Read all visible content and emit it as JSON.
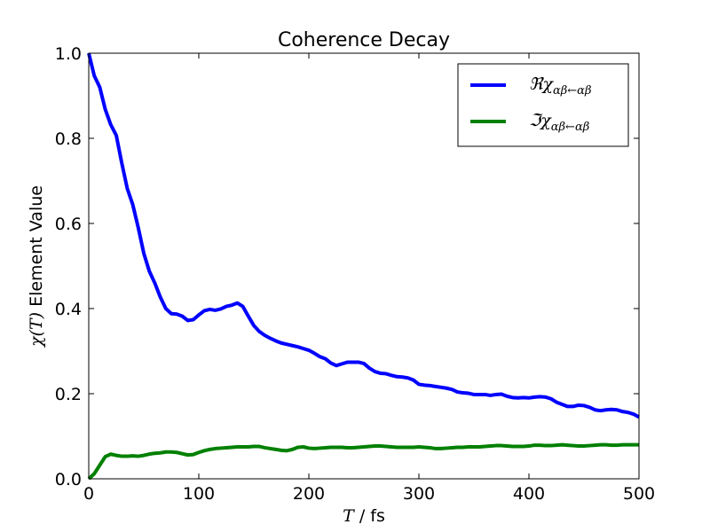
{
  "chart_data": {
    "type": "line",
    "title": "Coherence Decay",
    "xlabel": {
      "symbol": "T",
      "unit": " / fs"
    },
    "ylabel": {
      "symbol": "χ(T)",
      "text": " Element Value"
    },
    "xlim": [
      0,
      500
    ],
    "ylim": [
      0.0,
      1.0
    ],
    "xticks": [
      0,
      100,
      200,
      300,
      400,
      500
    ],
    "xtick_labels": [
      "0",
      "100",
      "200",
      "300",
      "400",
      "500"
    ],
    "yticks": [
      0.0,
      0.2,
      0.4,
      0.6,
      0.8,
      1.0
    ],
    "ytick_labels": [
      "0.0",
      "0.2",
      "0.4",
      "0.6",
      "0.8",
      "1.0"
    ],
    "grid": false,
    "legend_position": "top-right",
    "x": [
      0,
      5,
      10,
      15,
      20,
      25,
      30,
      35,
      40,
      45,
      50,
      55,
      60,
      65,
      70,
      75,
      80,
      85,
      90,
      95,
      100,
      105,
      110,
      115,
      120,
      125,
      130,
      135,
      140,
      145,
      150,
      155,
      160,
      165,
      170,
      175,
      180,
      185,
      190,
      195,
      200,
      205,
      210,
      215,
      220,
      225,
      230,
      235,
      240,
      245,
      250,
      255,
      260,
      265,
      270,
      275,
      280,
      285,
      290,
      295,
      300,
      305,
      310,
      315,
      320,
      325,
      330,
      335,
      340,
      345,
      350,
      355,
      360,
      365,
      370,
      375,
      380,
      385,
      390,
      395,
      400,
      405,
      410,
      415,
      420,
      425,
      430,
      435,
      440,
      445,
      450,
      455,
      460,
      465,
      470,
      475,
      480,
      485,
      490,
      495,
      500
    ],
    "series": [
      {
        "name": "ℜχ",
        "name_sub": "αβ←αβ",
        "color": "#0000ff",
        "values": [
          1.0,
          0.947,
          0.92,
          0.868,
          0.832,
          0.807,
          0.742,
          0.682,
          0.644,
          0.59,
          0.53,
          0.488,
          0.46,
          0.427,
          0.4,
          0.388,
          0.387,
          0.382,
          0.372,
          0.374,
          0.385,
          0.395,
          0.398,
          0.396,
          0.399,
          0.405,
          0.408,
          0.413,
          0.405,
          0.382,
          0.36,
          0.346,
          0.337,
          0.33,
          0.324,
          0.319,
          0.316,
          0.313,
          0.31,
          0.306,
          0.302,
          0.295,
          0.287,
          0.282,
          0.272,
          0.266,
          0.27,
          0.274,
          0.274,
          0.274,
          0.271,
          0.26,
          0.252,
          0.248,
          0.247,
          0.243,
          0.24,
          0.239,
          0.237,
          0.232,
          0.222,
          0.22,
          0.219,
          0.217,
          0.215,
          0.213,
          0.21,
          0.204,
          0.202,
          0.201,
          0.198,
          0.198,
          0.198,
          0.196,
          0.198,
          0.199,
          0.194,
          0.191,
          0.19,
          0.191,
          0.19,
          0.192,
          0.193,
          0.192,
          0.188,
          0.18,
          0.175,
          0.17,
          0.17,
          0.173,
          0.172,
          0.168,
          0.162,
          0.16,
          0.162,
          0.163,
          0.162,
          0.158,
          0.156,
          0.152,
          0.145
        ]
      },
      {
        "name": "ℑχ",
        "name_sub": "αβ←αβ",
        "color": "#008000",
        "values": [
          0.0,
          0.012,
          0.032,
          0.052,
          0.058,
          0.055,
          0.053,
          0.053,
          0.054,
          0.053,
          0.055,
          0.058,
          0.06,
          0.061,
          0.063,
          0.063,
          0.062,
          0.059,
          0.056,
          0.057,
          0.062,
          0.066,
          0.069,
          0.071,
          0.072,
          0.073,
          0.074,
          0.075,
          0.075,
          0.075,
          0.076,
          0.076,
          0.073,
          0.071,
          0.069,
          0.067,
          0.066,
          0.069,
          0.074,
          0.075,
          0.072,
          0.071,
          0.072,
          0.073,
          0.074,
          0.074,
          0.074,
          0.073,
          0.073,
          0.074,
          0.075,
          0.076,
          0.077,
          0.077,
          0.076,
          0.075,
          0.074,
          0.074,
          0.074,
          0.074,
          0.075,
          0.074,
          0.073,
          0.071,
          0.071,
          0.072,
          0.073,
          0.074,
          0.074,
          0.075,
          0.075,
          0.075,
          0.076,
          0.077,
          0.078,
          0.078,
          0.077,
          0.076,
          0.076,
          0.076,
          0.077,
          0.079,
          0.079,
          0.078,
          0.078,
          0.079,
          0.08,
          0.079,
          0.078,
          0.077,
          0.077,
          0.078,
          0.079,
          0.08,
          0.08,
          0.079,
          0.079,
          0.08,
          0.08,
          0.08,
          0.08
        ]
      }
    ]
  }
}
